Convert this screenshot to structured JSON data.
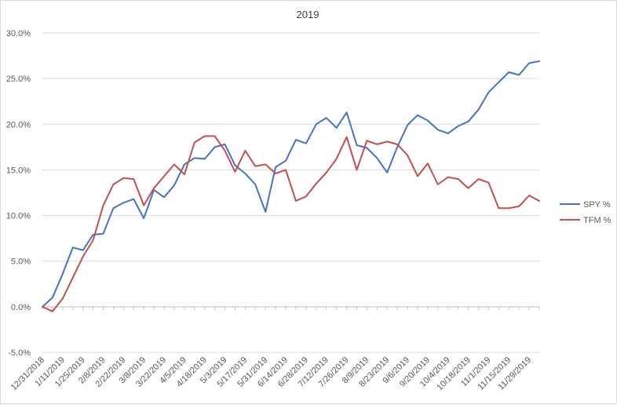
{
  "chart_data": {
    "type": "line",
    "title": "2019",
    "xlabel": "",
    "ylabel": "",
    "ylim": [
      -0.05,
      0.3
    ],
    "y_ticks": [
      "-5.0%",
      "0.0%",
      "5.0%",
      "10.0%",
      "15.0%",
      "20.0%",
      "25.0%",
      "30.0%"
    ],
    "grid": "horizontal",
    "legend_position": "right",
    "x_tick_labels": [
      "12/31/2018",
      "1/11/2019",
      "1/25/2019",
      "2/8/2019",
      "2/22/2019",
      "3/8/2019",
      "3/22/2019",
      "4/5/2019",
      "4/18/2019",
      "5/3/2019",
      "5/17/2019",
      "5/31/2019",
      "6/14/2019",
      "6/28/2019",
      "7/12/2019",
      "7/26/2019",
      "8/9/2019",
      "8/23/2019",
      "9/6/2019",
      "9/20/2019",
      "10/4/2019",
      "10/18/2019",
      "11/1/2019",
      "11/15/2019",
      "11/29/2019"
    ],
    "x": [
      "12/31/2018",
      "1/4/2019",
      "1/11/2019",
      "1/18/2019",
      "1/25/2019",
      "2/1/2019",
      "2/8/2019",
      "2/15/2019",
      "2/22/2019",
      "3/1/2019",
      "3/8/2019",
      "3/15/2019",
      "3/22/2019",
      "3/29/2019",
      "4/5/2019",
      "4/12/2019",
      "4/18/2019",
      "4/26/2019",
      "5/3/2019",
      "5/10/2019",
      "5/17/2019",
      "5/24/2019",
      "5/31/2019",
      "6/7/2019",
      "6/14/2019",
      "6/21/2019",
      "6/28/2019",
      "7/5/2019",
      "7/12/2019",
      "7/19/2019",
      "7/26/2019",
      "8/2/2019",
      "8/9/2019",
      "8/16/2019",
      "8/23/2019",
      "8/30/2019",
      "9/6/2019",
      "9/13/2019",
      "9/20/2019",
      "9/27/2019",
      "10/4/2019",
      "10/11/2019",
      "10/18/2019",
      "10/25/2019",
      "11/1/2019",
      "11/8/2019",
      "11/15/2019",
      "11/22/2019",
      "11/29/2019",
      "12/6/2019"
    ],
    "series": [
      {
        "name": "SPY %",
        "color": "#4472c4",
        "values": [
          0.0,
          0.01,
          0.036,
          0.065,
          0.062,
          0.079,
          0.08,
          0.108,
          0.114,
          0.118,
          0.097,
          0.128,
          0.12,
          0.133,
          0.156,
          0.163,
          0.162,
          0.175,
          0.178,
          0.155,
          0.146,
          0.134,
          0.104,
          0.153,
          0.16,
          0.183,
          0.179,
          0.2,
          0.207,
          0.196,
          0.213,
          0.177,
          0.174,
          0.163,
          0.147,
          0.175,
          0.199,
          0.21,
          0.204,
          0.194,
          0.19,
          0.198,
          0.203,
          0.216,
          0.235,
          0.246,
          0.257,
          0.254,
          0.267,
          0.269
        ]
      },
      {
        "name": "TFM %",
        "color": "#c0504d",
        "values": [
          0.0,
          -0.005,
          0.009,
          0.032,
          0.055,
          0.073,
          0.111,
          0.134,
          0.141,
          0.14,
          0.111,
          0.13,
          0.143,
          0.156,
          0.145,
          0.18,
          0.187,
          0.187,
          0.171,
          0.148,
          0.171,
          0.154,
          0.156,
          0.146,
          0.15,
          0.116,
          0.121,
          0.135,
          0.147,
          0.162,
          0.186,
          0.15,
          0.182,
          0.178,
          0.181,
          0.178,
          0.166,
          0.143,
          0.157,
          0.134,
          0.142,
          0.14,
          0.13,
          0.14,
          0.136,
          0.108,
          0.108,
          0.11,
          0.122,
          0.116
        ]
      }
    ]
  }
}
